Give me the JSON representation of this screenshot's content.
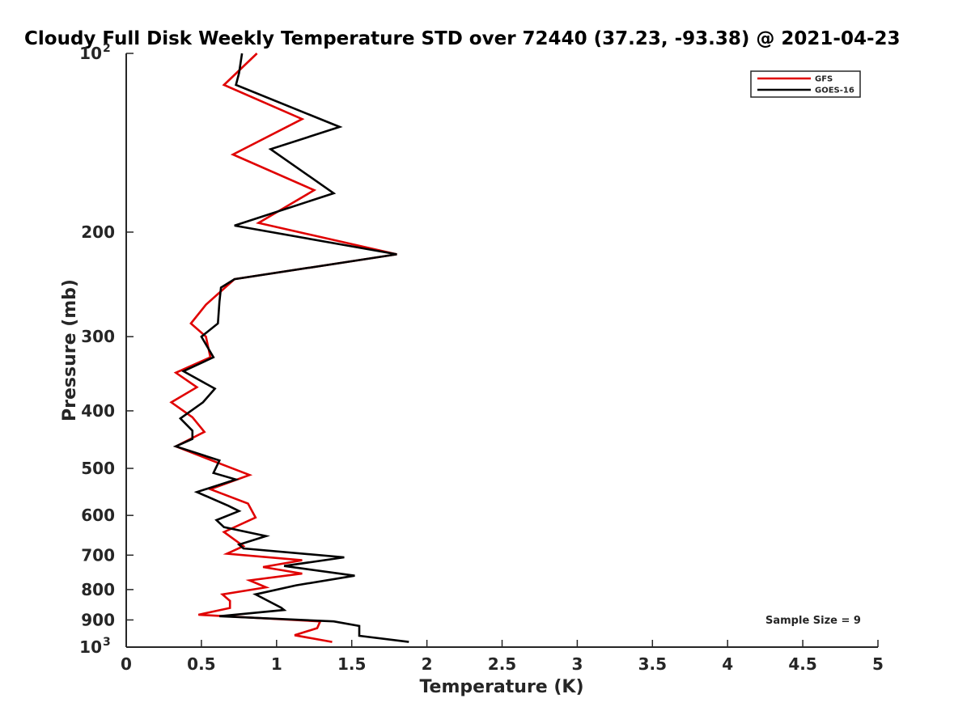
{
  "chart_data": {
    "type": "line",
    "title": "Cloudy Full Disk Weekly Temperature STD over 72440 (37.23, -93.38) @ 2021-04-23",
    "xlabel": "Temperature (K)",
    "ylabel": "Pressure (mb)",
    "xlim": [
      0,
      5
    ],
    "ylim": [
      100,
      1000
    ],
    "y_scale": "log",
    "y_reversed": true,
    "x_ticks": [
      "0",
      "0.5",
      "1",
      "1.5",
      "2",
      "2.5",
      "3",
      "3.5",
      "4",
      "4.5",
      "5"
    ],
    "y_ticks": [
      {
        "value": 100,
        "base": "10",
        "exp": "2"
      },
      {
        "value": 200,
        "label": "200"
      },
      {
        "value": 300,
        "label": "300"
      },
      {
        "value": 400,
        "label": "400"
      },
      {
        "value": 500,
        "label": "500"
      },
      {
        "value": 600,
        "label": "600"
      },
      {
        "value": 700,
        "label": "700"
      },
      {
        "value": 800,
        "label": "800"
      },
      {
        "value": 900,
        "label": "900"
      },
      {
        "value": 1000,
        "base": "10",
        "exp": "3"
      }
    ],
    "grid": false,
    "legend_position": "top-right",
    "annotation": "Sample Size = 9",
    "series": [
      {
        "name": "GFS",
        "color": "#e00000",
        "points": [
          [
            0.87,
            100
          ],
          [
            0.65,
            113
          ],
          [
            1.17,
            129
          ],
          [
            0.71,
            148
          ],
          [
            1.25,
            170
          ],
          [
            0.88,
            193
          ],
          [
            1.8,
            218
          ],
          [
            0.72,
            240
          ],
          [
            0.53,
            265
          ],
          [
            0.43,
            285
          ],
          [
            0.53,
            300
          ],
          [
            0.56,
            325
          ],
          [
            0.33,
            345
          ],
          [
            0.47,
            365
          ],
          [
            0.3,
            387
          ],
          [
            0.44,
            410
          ],
          [
            0.52,
            434
          ],
          [
            0.33,
            459
          ],
          [
            0.57,
            485
          ],
          [
            0.82,
            513
          ],
          [
            0.56,
            542
          ],
          [
            0.81,
            573
          ],
          [
            0.86,
            605
          ],
          [
            0.65,
            640
          ],
          [
            0.78,
            676
          ],
          [
            0.67,
            696
          ],
          [
            1.17,
            714
          ],
          [
            0.91,
            733
          ],
          [
            1.17,
            752
          ],
          [
            0.82,
            772
          ],
          [
            0.93,
            793
          ],
          [
            0.64,
            815
          ],
          [
            0.69,
            836
          ],
          [
            0.69,
            859
          ],
          [
            0.48,
            882
          ],
          [
            1.29,
            905
          ],
          [
            1.27,
            929
          ],
          [
            1.12,
            955
          ],
          [
            1.37,
            980
          ]
        ]
      },
      {
        "name": "GOES-16",
        "color": "#000000",
        "points": [
          [
            0.77,
            100
          ],
          [
            0.75,
            108
          ],
          [
            0.73,
            113
          ],
          [
            1.42,
            133
          ],
          [
            0.96,
            145
          ],
          [
            1.38,
            172
          ],
          [
            0.72,
            195
          ],
          [
            1.8,
            218
          ],
          [
            0.72,
            240
          ],
          [
            0.63,
            248
          ],
          [
            0.62,
            262
          ],
          [
            0.61,
            285
          ],
          [
            0.5,
            300
          ],
          [
            0.58,
            325
          ],
          [
            0.38,
            343
          ],
          [
            0.59,
            367
          ],
          [
            0.51,
            387
          ],
          [
            0.36,
            412
          ],
          [
            0.44,
            432
          ],
          [
            0.44,
            446
          ],
          [
            0.33,
            459
          ],
          [
            0.62,
            485
          ],
          [
            0.58,
            509
          ],
          [
            0.73,
            522
          ],
          [
            0.47,
            548
          ],
          [
            0.68,
            578
          ],
          [
            0.75,
            590
          ],
          [
            0.6,
            611
          ],
          [
            0.65,
            628
          ],
          [
            0.93,
            650
          ],
          [
            0.75,
            672
          ],
          [
            0.78,
            682
          ],
          [
            1.45,
            706
          ],
          [
            1.05,
            730
          ],
          [
            1.52,
            758
          ],
          [
            1.13,
            787
          ],
          [
            0.86,
            815
          ],
          [
            1.03,
            858
          ],
          [
            1.05,
            866
          ],
          [
            0.62,
            887
          ],
          [
            1.38,
            905
          ],
          [
            1.55,
            921
          ],
          [
            1.55,
            957
          ],
          [
            1.88,
            980
          ]
        ]
      }
    ]
  }
}
